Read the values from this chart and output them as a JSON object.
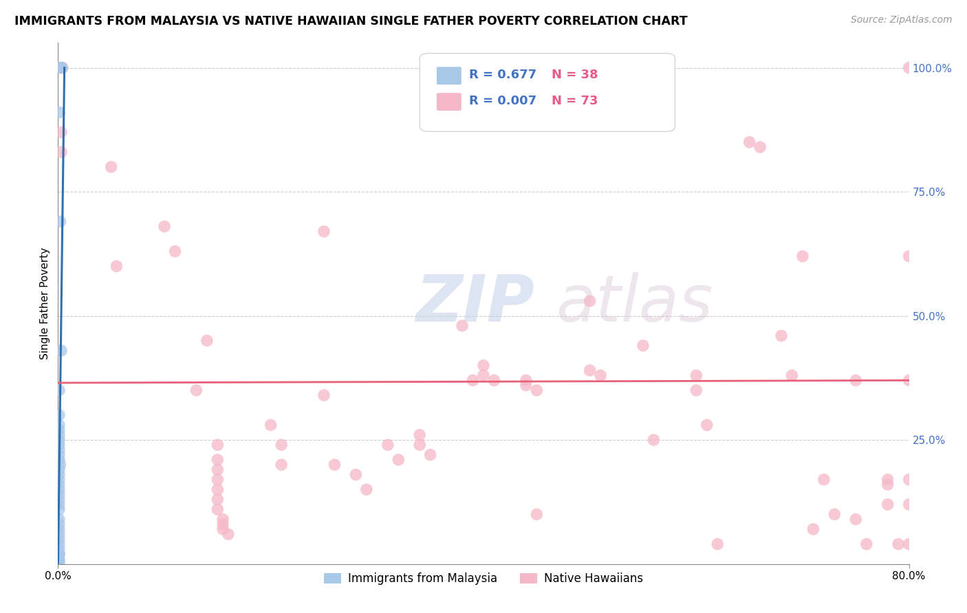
{
  "title": "IMMIGRANTS FROM MALAYSIA VS NATIVE HAWAIIAN SINGLE FATHER POVERTY CORRELATION CHART",
  "source": "Source: ZipAtlas.com",
  "ylabel": "Single Father Poverty",
  "xlim": [
    0,
    0.8
  ],
  "ylim": [
    0,
    1.05
  ],
  "ytick_positions_right": [
    1.0,
    0.75,
    0.5,
    0.25,
    0.0
  ],
  "ytick_labels_right": [
    "100.0%",
    "75.0%",
    "50.0%",
    "25.0%",
    ""
  ],
  "legend_r1": "0.677",
  "legend_n1": "38",
  "legend_r2": "0.007",
  "legend_n2": "73",
  "color_blue": "#a8c8e8",
  "color_pink": "#f5b8c8",
  "color_blue_line": "#3070b0",
  "color_pink_line": "#e8607a",
  "legend_label1": "Immigrants from Malaysia",
  "legend_label2": "Native Hawaiians",
  "watermark_zip": "ZIP",
  "watermark_atlas": "atlas",
  "blue_scatter_x": [
    0.002,
    0.004,
    0.001,
    0.002,
    0.003,
    0.001,
    0.001,
    0.001,
    0.001,
    0.001,
    0.001,
    0.001,
    0.001,
    0.001,
    0.001,
    0.002,
    0.001,
    0.001,
    0.001,
    0.001,
    0.001,
    0.001,
    0.001,
    0.001,
    0.001,
    0.001,
    0.001,
    0.001,
    0.001,
    0.001,
    0.001,
    0.001,
    0.001,
    0.001,
    0.001,
    0.001,
    0.001,
    0.001
  ],
  "blue_scatter_y": [
    1.0,
    1.0,
    0.91,
    0.69,
    0.43,
    0.35,
    0.3,
    0.28,
    0.27,
    0.26,
    0.25,
    0.24,
    0.23,
    0.22,
    0.21,
    0.2,
    0.19,
    0.18,
    0.17,
    0.16,
    0.15,
    0.14,
    0.13,
    0.12,
    0.11,
    0.09,
    0.08,
    0.07,
    0.06,
    0.05,
    0.04,
    0.03,
    0.02,
    0.02,
    0.02,
    0.01,
    0.005,
    0.0
  ],
  "pink_scatter_x": [
    0.003,
    0.004,
    0.003,
    0.003,
    0.05,
    0.055,
    0.1,
    0.11,
    0.13,
    0.14,
    0.15,
    0.15,
    0.15,
    0.15,
    0.15,
    0.15,
    0.15,
    0.155,
    0.155,
    0.155,
    0.16,
    0.2,
    0.21,
    0.21,
    0.25,
    0.25,
    0.26,
    0.28,
    0.29,
    0.31,
    0.32,
    0.34,
    0.34,
    0.35,
    0.38,
    0.39,
    0.4,
    0.4,
    0.41,
    0.44,
    0.44,
    0.45,
    0.45,
    0.5,
    0.5,
    0.51,
    0.55,
    0.56,
    0.6,
    0.6,
    0.61,
    0.62,
    0.65,
    0.66,
    0.68,
    0.69,
    0.7,
    0.71,
    0.72,
    0.73,
    0.75,
    0.75,
    0.76,
    0.78,
    0.78,
    0.78,
    0.79,
    0.8,
    0.8,
    0.8,
    0.8,
    0.8,
    0.8
  ],
  "pink_scatter_y": [
    1.0,
    1.0,
    0.87,
    0.83,
    0.8,
    0.6,
    0.68,
    0.63,
    0.35,
    0.45,
    0.24,
    0.21,
    0.19,
    0.17,
    0.15,
    0.13,
    0.11,
    0.09,
    0.08,
    0.07,
    0.06,
    0.28,
    0.24,
    0.2,
    0.67,
    0.34,
    0.2,
    0.18,
    0.15,
    0.24,
    0.21,
    0.26,
    0.24,
    0.22,
    0.48,
    0.37,
    0.4,
    0.38,
    0.37,
    0.37,
    0.36,
    0.35,
    0.1,
    0.53,
    0.39,
    0.38,
    0.44,
    0.25,
    0.38,
    0.35,
    0.28,
    0.04,
    0.85,
    0.84,
    0.46,
    0.38,
    0.62,
    0.07,
    0.17,
    0.1,
    0.37,
    0.09,
    0.04,
    0.17,
    0.16,
    0.12,
    0.04,
    1.0,
    0.62,
    0.37,
    0.17,
    0.12,
    0.04
  ],
  "blue_line_x": [
    0.0,
    0.006
  ],
  "blue_line_y": [
    0.0,
    1.0
  ],
  "pink_line_y_start": 0.365,
  "pink_line_y_end": 0.37
}
